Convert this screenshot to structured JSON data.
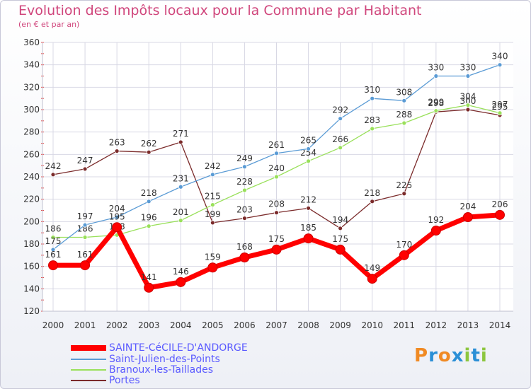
{
  "chart_data": {
    "type": "line",
    "title": "Evolution des Impôts locaux pour la Commune par Habitant",
    "subtitle": "(en € et par an)",
    "x": [
      "2000",
      "2001",
      "2002",
      "2003",
      "2004",
      "2005",
      "2006",
      "2007",
      "2008",
      "2009",
      "2010",
      "2011",
      "2012",
      "2013",
      "2014"
    ],
    "ylim": [
      120,
      360
    ],
    "yticks": [
      120,
      140,
      160,
      180,
      200,
      220,
      240,
      260,
      280,
      300,
      320,
      340,
      360
    ],
    "grid": true,
    "series": [
      {
        "name": "SAINTE-CéCILE-D'ANDORGE",
        "color": "#ff0000",
        "values": [
          161,
          161,
          195,
          141,
          146,
          159,
          168,
          175,
          185,
          175,
          149,
          170,
          192,
          204,
          206
        ]
      },
      {
        "name": "Saint-Julien-des-Points",
        "color": "#5a9bd5",
        "values": [
          175,
          197,
          204,
          218,
          231,
          242,
          249,
          261,
          265,
          292,
          310,
          308,
          330,
          330,
          340
        ]
      },
      {
        "name": "Branoux-les-Taillades",
        "color": "#99e05a",
        "values": [
          186,
          186,
          188,
          196,
          201,
          215,
          228,
          240,
          254,
          266,
          283,
          288,
          299,
          304,
          297
        ]
      },
      {
        "name": "Portes",
        "color": "#7b2b2b",
        "values": [
          242,
          247,
          263,
          262,
          271,
          199,
          203,
          208,
          212,
          194,
          218,
          225,
          298,
          300,
          295
        ]
      }
    ]
  },
  "logo": {
    "text": "Proxiti",
    "colors": [
      "#f08a24",
      "#2a8fd6",
      "#f08a24",
      "#2a8fd6",
      "#8cc63f",
      "#2a8fd6",
      "#8cc63f"
    ]
  }
}
